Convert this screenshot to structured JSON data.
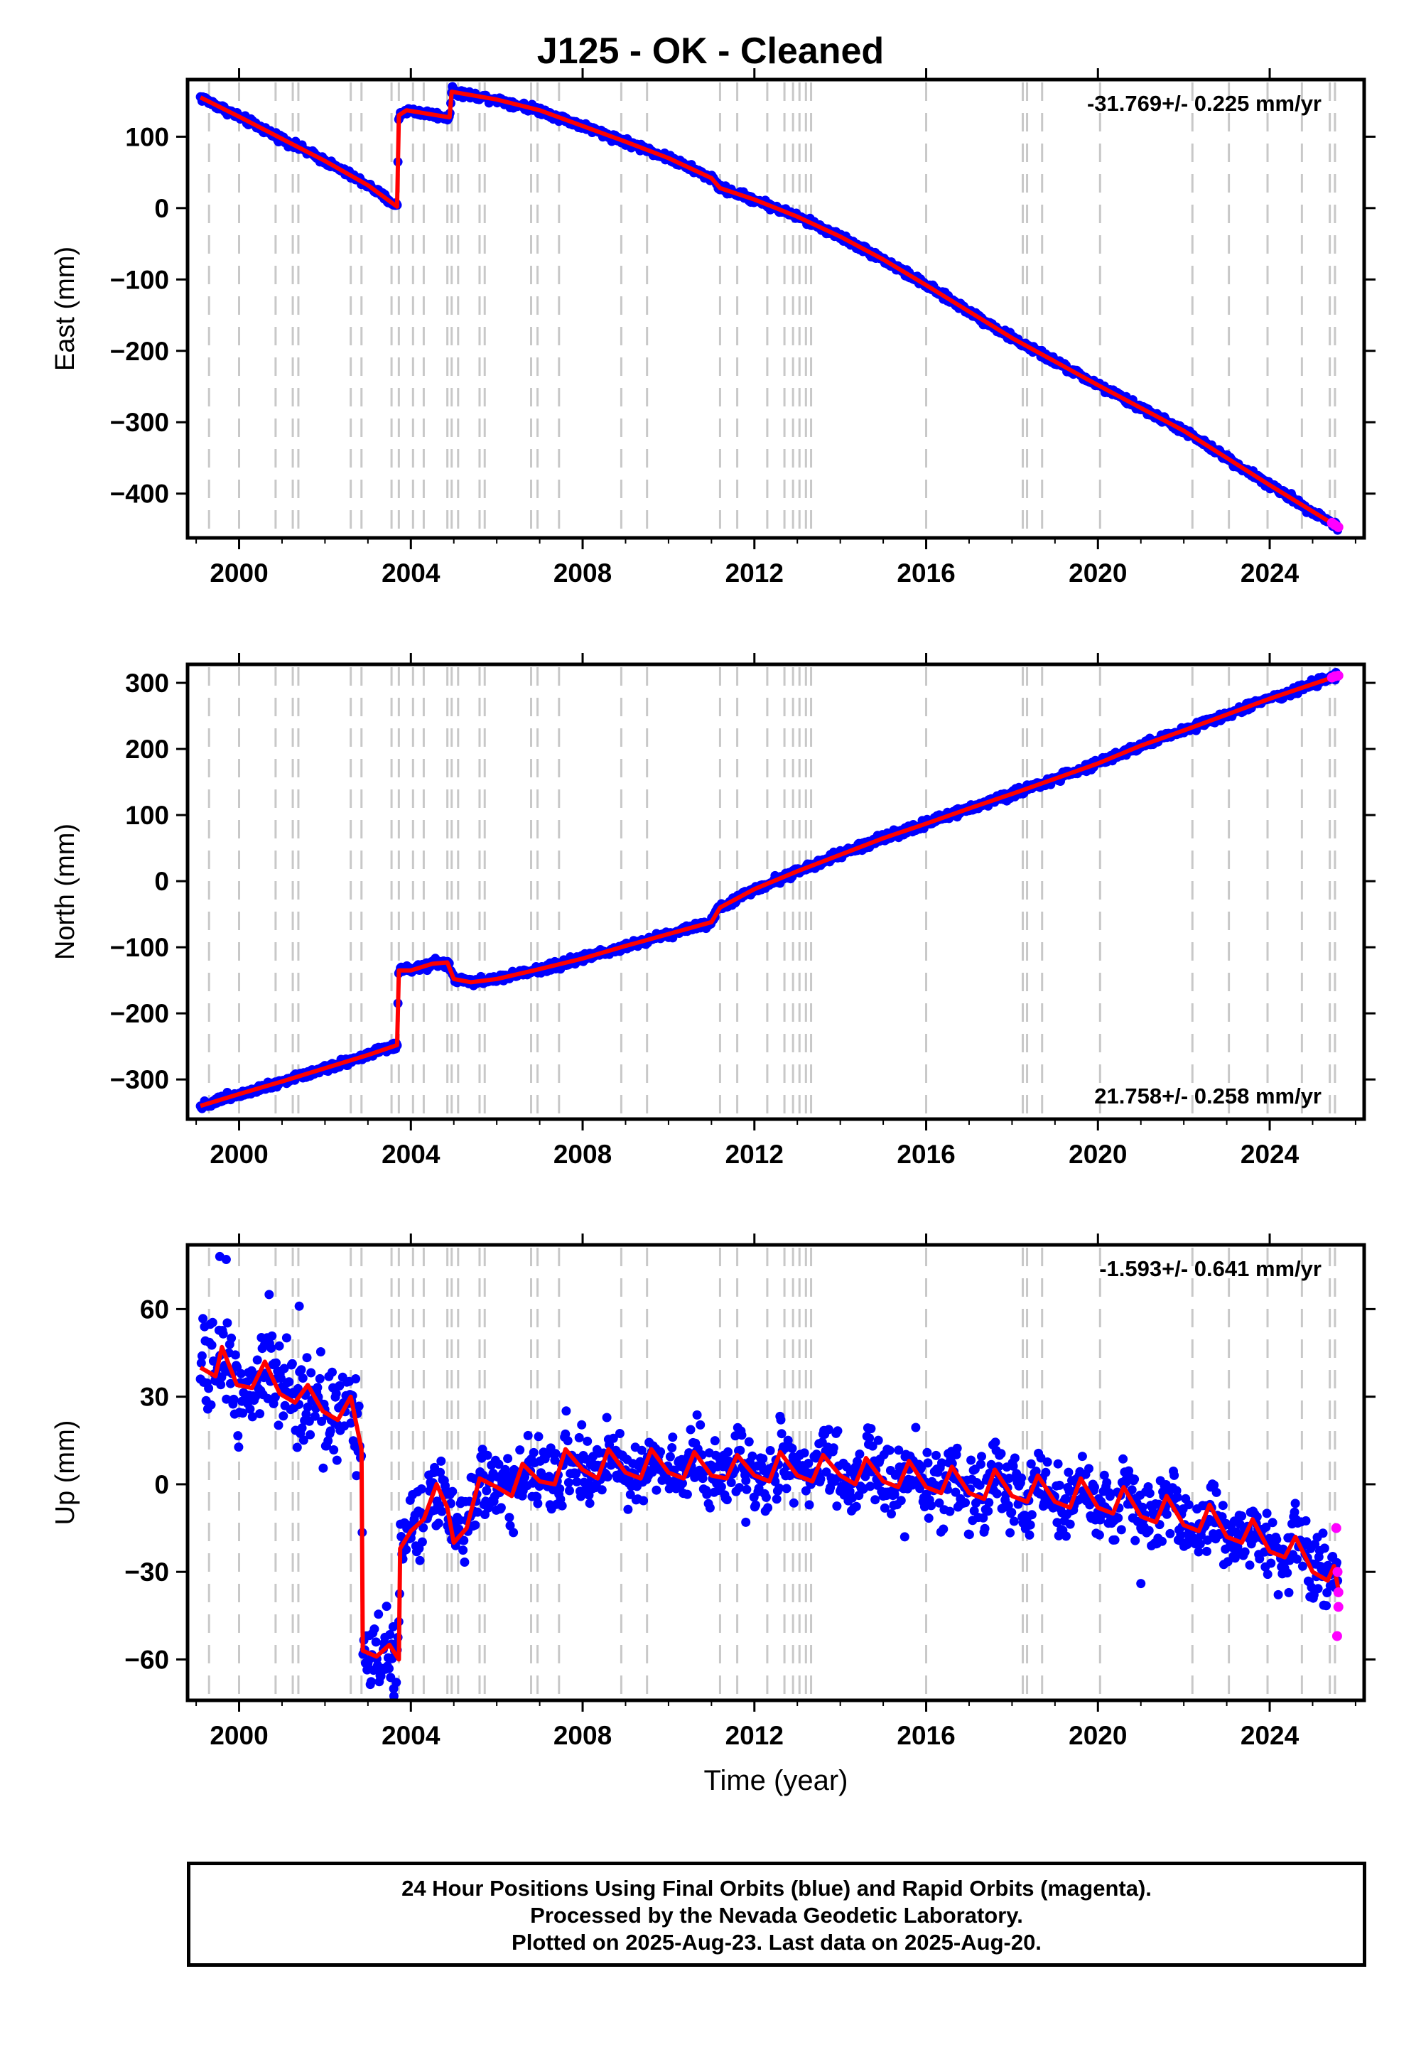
{
  "title": "J125  - OK - Cleaned",
  "footer": {
    "line1": "24 Hour Positions Using Final Orbits (blue) and Rapid Orbits (magenta).",
    "line2": "Processed by the Nevada Geodetic Laboratory.",
    "line3": "Plotted on 2025-Aug-23. Last data on 2025-Aug-20."
  },
  "colors": {
    "final": "#0000ff",
    "rapid": "#ff00ff",
    "model": "#ff0000",
    "steps": "#c8c8c8",
    "frame": "#000000"
  },
  "chart_data": [
    {
      "type": "scatter",
      "component": "east",
      "title": "J125  - OK - Cleaned",
      "xlabel": "",
      "ylabel": "East (mm)",
      "xlim": [
        1998.8,
        2026.2
      ],
      "ylim": [
        -462,
        180
      ],
      "xticks": [
        2000,
        2004,
        2008,
        2012,
        2016,
        2020,
        2024
      ],
      "xtick_labels": [
        "2000",
        "2004",
        "2008",
        "2012",
        "2016",
        "2020",
        "2024"
      ],
      "yticks": [
        -400,
        -300,
        -200,
        -100,
        0,
        100
      ],
      "ytick_labels": [
        "−400",
        "−300",
        "−200",
        "−100",
        "0",
        "100"
      ],
      "rate_label": "-31.769+/- 0.225 mm/yr",
      "rate_position": "top-right",
      "model_line": [
        {
          "x": 1999.1,
          "y": 155
        },
        {
          "x": 2000.0,
          "y": 128
        },
        {
          "x": 2001.0,
          "y": 97
        },
        {
          "x": 2002.0,
          "y": 66
        },
        {
          "x": 2003.0,
          "y": 32
        },
        {
          "x": 2003.68,
          "y": 2
        },
        {
          "x": 2003.72,
          "y": 130
        },
        {
          "x": 2003.9,
          "y": 137
        },
        {
          "x": 2004.9,
          "y": 127
        },
        {
          "x": 2004.95,
          "y": 163
        },
        {
          "x": 2006.0,
          "y": 152
        },
        {
          "x": 2007.0,
          "y": 137
        },
        {
          "x": 2008.0,
          "y": 115
        },
        {
          "x": 2009.0,
          "y": 93
        },
        {
          "x": 2010.0,
          "y": 70
        },
        {
          "x": 2011.0,
          "y": 42
        },
        {
          "x": 2011.2,
          "y": 28
        },
        {
          "x": 2012.0,
          "y": 12
        },
        {
          "x": 2013.0,
          "y": -12
        },
        {
          "x": 2014.0,
          "y": -40
        },
        {
          "x": 2015.0,
          "y": -72
        },
        {
          "x": 2016.0,
          "y": -108
        },
        {
          "x": 2017.0,
          "y": -145
        },
        {
          "x": 2018.0,
          "y": -182
        },
        {
          "x": 2019.0,
          "y": -215
        },
        {
          "x": 2020.0,
          "y": -248
        },
        {
          "x": 2021.0,
          "y": -280
        },
        {
          "x": 2022.0,
          "y": -312
        },
        {
          "x": 2023.0,
          "y": -350
        },
        {
          "x": 2024.0,
          "y": -388
        },
        {
          "x": 2025.0,
          "y": -425
        },
        {
          "x": 2025.6,
          "y": -447
        }
      ],
      "noise_mm": 2.5,
      "rapid_points": [
        {
          "x": 2025.45,
          "y": -441
        },
        {
          "x": 2025.52,
          "y": -444
        },
        {
          "x": 2025.6,
          "y": -447
        }
      ]
    },
    {
      "type": "scatter",
      "component": "north",
      "xlabel": "",
      "ylabel": "North (mm)",
      "xlim": [
        1998.8,
        2026.2
      ],
      "ylim": [
        -360,
        328
      ],
      "xticks": [
        2000,
        2004,
        2008,
        2012,
        2016,
        2020,
        2024
      ],
      "xtick_labels": [
        "2000",
        "2004",
        "2008",
        "2012",
        "2016",
        "2020",
        "2024"
      ],
      "yticks": [
        -300,
        -200,
        -100,
        0,
        100,
        200,
        300
      ],
      "ytick_labels": [
        "−300",
        "−200",
        "−100",
        "0",
        "100",
        "200",
        "300"
      ],
      "rate_label": "21.758+/- 0.258 mm/yr",
      "rate_position": "bottom-right",
      "model_line": [
        {
          "x": 1999.1,
          "y": -340
        },
        {
          "x": 2000.0,
          "y": -322
        },
        {
          "x": 2001.0,
          "y": -303
        },
        {
          "x": 2002.0,
          "y": -283
        },
        {
          "x": 2003.0,
          "y": -263
        },
        {
          "x": 2003.68,
          "y": -248
        },
        {
          "x": 2003.72,
          "y": -135
        },
        {
          "x": 2004.0,
          "y": -135
        },
        {
          "x": 2004.5,
          "y": -125
        },
        {
          "x": 2004.85,
          "y": -123
        },
        {
          "x": 2005.0,
          "y": -148
        },
        {
          "x": 2005.4,
          "y": -153
        },
        {
          "x": 2006.0,
          "y": -148
        },
        {
          "x": 2007.0,
          "y": -133
        },
        {
          "x": 2008.0,
          "y": -117
        },
        {
          "x": 2009.0,
          "y": -98
        },
        {
          "x": 2010.0,
          "y": -80
        },
        {
          "x": 2011.0,
          "y": -62
        },
        {
          "x": 2011.2,
          "y": -40
        },
        {
          "x": 2012.0,
          "y": -12
        },
        {
          "x": 2013.0,
          "y": 15
        },
        {
          "x": 2014.0,
          "y": 40
        },
        {
          "x": 2015.0,
          "y": 65
        },
        {
          "x": 2016.0,
          "y": 87
        },
        {
          "x": 2017.0,
          "y": 110
        },
        {
          "x": 2018.0,
          "y": 132
        },
        {
          "x": 2019.0,
          "y": 155
        },
        {
          "x": 2020.0,
          "y": 178
        },
        {
          "x": 2021.0,
          "y": 205
        },
        {
          "x": 2022.0,
          "y": 228
        },
        {
          "x": 2023.0,
          "y": 252
        },
        {
          "x": 2024.0,
          "y": 276
        },
        {
          "x": 2025.0,
          "y": 298
        },
        {
          "x": 2025.6,
          "y": 311
        }
      ],
      "noise_mm": 3,
      "rapid_points": [
        {
          "x": 2025.45,
          "y": 308
        },
        {
          "x": 2025.52,
          "y": 310
        },
        {
          "x": 2025.6,
          "y": 311
        }
      ]
    },
    {
      "type": "scatter",
      "component": "up",
      "xlabel": "Time (year)",
      "ylabel": "Up (mm)",
      "xlim": [
        1998.8,
        2026.2
      ],
      "ylim": [
        -74,
        82
      ],
      "xticks": [
        2000,
        2004,
        2008,
        2012,
        2016,
        2020,
        2024
      ],
      "xtick_labels": [
        "2000",
        "2004",
        "2008",
        "2012",
        "2016",
        "2020",
        "2024"
      ],
      "yticks": [
        -60,
        -30,
        0,
        30,
        60
      ],
      "ytick_labels": [
        "−60",
        "−30",
        "0",
        "30",
        "60"
      ],
      "rate_label": "-1.593+/- 0.641 mm/yr",
      "rate_position": "top-right",
      "model_line": [
        {
          "x": 1999.1,
          "y": 40
        },
        {
          "x": 1999.45,
          "y": 37
        },
        {
          "x": 1999.6,
          "y": 47
        },
        {
          "x": 1999.95,
          "y": 34
        },
        {
          "x": 2000.3,
          "y": 33
        },
        {
          "x": 2000.6,
          "y": 42
        },
        {
          "x": 2000.95,
          "y": 31
        },
        {
          "x": 2001.3,
          "y": 28
        },
        {
          "x": 2001.6,
          "y": 34
        },
        {
          "x": 2001.95,
          "y": 25
        },
        {
          "x": 2002.3,
          "y": 22
        },
        {
          "x": 2002.6,
          "y": 30
        },
        {
          "x": 2002.85,
          "y": 12
        },
        {
          "x": 2002.88,
          "y": -57
        },
        {
          "x": 2003.2,
          "y": -59
        },
        {
          "x": 2003.5,
          "y": -55
        },
        {
          "x": 2003.72,
          "y": -60
        },
        {
          "x": 2003.75,
          "y": -22
        },
        {
          "x": 2004.0,
          "y": -16
        },
        {
          "x": 2004.3,
          "y": -12
        },
        {
          "x": 2004.6,
          "y": 0
        },
        {
          "x": 2004.85,
          "y": -8
        },
        {
          "x": 2005.0,
          "y": -20
        },
        {
          "x": 2005.3,
          "y": -15
        },
        {
          "x": 2005.6,
          "y": 2
        },
        {
          "x": 2006.0,
          "y": -1
        },
        {
          "x": 2006.35,
          "y": -4
        },
        {
          "x": 2006.6,
          "y": 7
        },
        {
          "x": 2007.0,
          "y": 1
        },
        {
          "x": 2007.35,
          "y": 0
        },
        {
          "x": 2007.6,
          "y": 12
        },
        {
          "x": 2008.0,
          "y": 5
        },
        {
          "x": 2008.35,
          "y": 2
        },
        {
          "x": 2008.6,
          "y": 12
        },
        {
          "x": 2009.0,
          "y": 4
        },
        {
          "x": 2009.35,
          "y": 2
        },
        {
          "x": 2009.6,
          "y": 12
        },
        {
          "x": 2010.0,
          "y": 4
        },
        {
          "x": 2010.35,
          "y": 2
        },
        {
          "x": 2010.6,
          "y": 11
        },
        {
          "x": 2011.0,
          "y": 3
        },
        {
          "x": 2011.35,
          "y": 2
        },
        {
          "x": 2011.6,
          "y": 10
        },
        {
          "x": 2012.0,
          "y": 3
        },
        {
          "x": 2012.35,
          "y": 1
        },
        {
          "x": 2012.6,
          "y": 11
        },
        {
          "x": 2013.0,
          "y": 3
        },
        {
          "x": 2013.35,
          "y": 1
        },
        {
          "x": 2013.6,
          "y": 10
        },
        {
          "x": 2014.0,
          "y": 3
        },
        {
          "x": 2014.35,
          "y": 0
        },
        {
          "x": 2014.6,
          "y": 9
        },
        {
          "x": 2015.0,
          "y": 1
        },
        {
          "x": 2015.35,
          "y": -1
        },
        {
          "x": 2015.6,
          "y": 8
        },
        {
          "x": 2016.0,
          "y": -1
        },
        {
          "x": 2016.35,
          "y": -3
        },
        {
          "x": 2016.6,
          "y": 6
        },
        {
          "x": 2017.0,
          "y": -3
        },
        {
          "x": 2017.35,
          "y": -5
        },
        {
          "x": 2017.6,
          "y": 5
        },
        {
          "x": 2018.0,
          "y": -4
        },
        {
          "x": 2018.35,
          "y": -6
        },
        {
          "x": 2018.6,
          "y": 3
        },
        {
          "x": 2019.0,
          "y": -6
        },
        {
          "x": 2019.35,
          "y": -8
        },
        {
          "x": 2019.6,
          "y": 2
        },
        {
          "x": 2020.0,
          "y": -8
        },
        {
          "x": 2020.35,
          "y": -10
        },
        {
          "x": 2020.6,
          "y": -1
        },
        {
          "x": 2021.0,
          "y": -11
        },
        {
          "x": 2021.35,
          "y": -13
        },
        {
          "x": 2021.6,
          "y": -4
        },
        {
          "x": 2022.0,
          "y": -14
        },
        {
          "x": 2022.35,
          "y": -16
        },
        {
          "x": 2022.6,
          "y": -7
        },
        {
          "x": 2023.0,
          "y": -18
        },
        {
          "x": 2023.35,
          "y": -20
        },
        {
          "x": 2023.6,
          "y": -12
        },
        {
          "x": 2024.0,
          "y": -23
        },
        {
          "x": 2024.35,
          "y": -25
        },
        {
          "x": 2024.6,
          "y": -18
        },
        {
          "x": 2025.0,
          "y": -30
        },
        {
          "x": 2025.35,
          "y": -33
        },
        {
          "x": 2025.5,
          "y": -28
        },
        {
          "x": 2025.6,
          "y": -36
        }
      ],
      "noise_mm": 6,
      "rapid_points": [
        {
          "x": 2025.55,
          "y": -15
        },
        {
          "x": 2025.58,
          "y": -30
        },
        {
          "x": 2025.6,
          "y": -37
        },
        {
          "x": 2025.6,
          "y": -42
        },
        {
          "x": 2025.57,
          "y": -52
        }
      ]
    }
  ],
  "step_epochs": [
    1999.3,
    2000.0,
    2000.85,
    2001.25,
    2001.38,
    2002.6,
    2002.85,
    2003.55,
    2003.72,
    2004.05,
    2004.3,
    2004.85,
    2004.95,
    2005.1,
    2005.6,
    2005.72,
    2006.8,
    2006.95,
    2007.45,
    2008.9,
    2009.5,
    2011.2,
    2011.6,
    2012.3,
    2012.7,
    2012.9,
    2013.05,
    2013.2,
    2013.32,
    2016.0,
    2018.25,
    2018.35,
    2018.7,
    2020.05,
    2022.2,
    2023.05,
    2023.95,
    2024.75,
    2025.4,
    2025.52
  ]
}
